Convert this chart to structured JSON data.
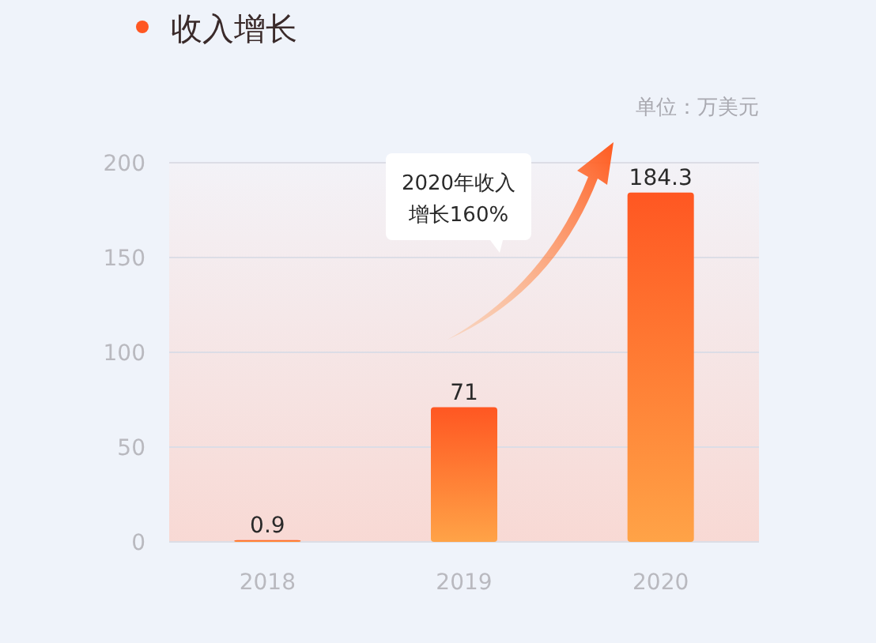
{
  "chart_data": {
    "type": "bar",
    "title": "收入增长",
    "annotations": [
      "单位：万美元",
      "2020年收入增长160%"
    ],
    "categories": [
      "2018",
      "2019",
      "2020"
    ],
    "values": [
      0.9,
      71,
      184.3
    ],
    "color": "#ff5722",
    "ylim": [
      0,
      200
    ],
    "yticks": [
      0,
      50,
      100,
      150,
      200
    ],
    "grid": "y",
    "data_labels": true
  }
}
